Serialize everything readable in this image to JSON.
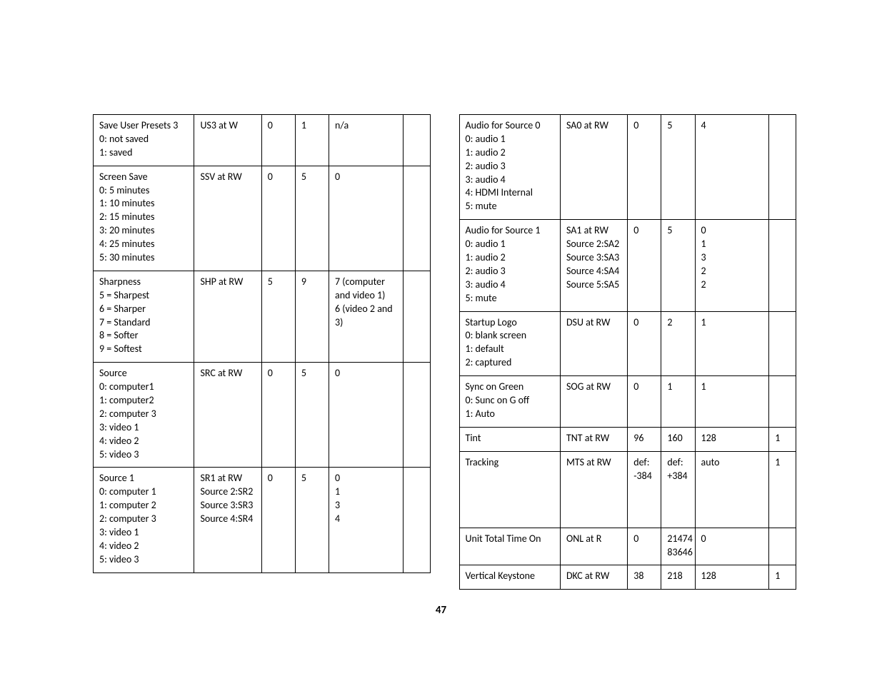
{
  "page_number": "47",
  "left_table": {
    "rows": [
      {
        "c1": "Save User Presets 3\n0: not saved\n1: saved",
        "c2": "US3 at W",
        "c3": "0",
        "c4": "1",
        "c5": "n/a",
        "c6": ""
      },
      {
        "c1": "Screen Save\n0: 5 minutes\n1: 10 minutes\n2: 15 minutes\n3: 20 minutes\n4: 25 minutes\n5: 30 minutes",
        "c2": "SSV at RW",
        "c3": "0",
        "c4": "5",
        "c5": "0",
        "c6": ""
      },
      {
        "c1": "Sharpness\n5 = Sharpest\n6 = Sharper\n7 = Standard\n8 = Softer\n9 = Softest",
        "c2": "SHP at RW",
        "c3": "5",
        "c4": "9",
        "c5": "7 (computer and video 1)\n6 (video 2 and 3)",
        "c6": ""
      },
      {
        "c1": "Source\n0: computer1\n1: computer2\n2: computer 3\n3: video 1\n4: video 2\n5: video 3",
        "c2": "SRC at RW",
        "c3": "0",
        "c4": "5",
        "c5": "0",
        "c6": ""
      },
      {
        "c1": "Source 1\n0: computer 1\n1: computer 2\n2: computer 3\n3: video 1\n4: video 2\n5: video 3",
        "c2": "SR1 at RW\nSource 2:SR2\nSource 3:SR3\nSource 4:SR4",
        "c3": "0",
        "c4": "5",
        "c5": "0\n1\n3\n4",
        "c6": ""
      }
    ]
  },
  "right_table": {
    "rows": [
      {
        "c1": "Audio for Source 0\n0: audio 1\n1: audio 2\n2: audio 3\n3: audio 4\n4: HDMI Internal\n5: mute",
        "c2": "SA0 at RW",
        "c3": "0",
        "c4": "5",
        "c5": "4",
        "c6": ""
      },
      {
        "c1": "Audio for Source 1\n0: audio 1\n1: audio 2\n2: audio 3\n3: audio 4\n5: mute",
        "c2": "SA1 at RW\nSource 2:SA2\nSource 3:SA3\nSource 4:SA4\nSource 5:SA5",
        "c3": "0",
        "c4": "5",
        "c5": "0\n1\n3\n2\n2",
        "c6": ""
      },
      {
        "c1": "Startup Logo\n0: blank screen\n1: default\n2: captured",
        "c2": "DSU at RW",
        "c3": "0",
        "c4": "2",
        "c5": "1",
        "c6": ""
      },
      {
        "c1": "Sync on Green\n0: Sunc on G off\n1: Auto",
        "c2": "SOG at RW",
        "c3": "0",
        "c4": "1",
        "c5": "1",
        "c6": ""
      },
      {
        "c1": "Tint",
        "c2": "TNT at RW",
        "c3": "96",
        "c4": "160",
        "c5": "128",
        "c6": "1"
      },
      {
        "c1": "Tracking",
        "c2": "MTS at RW",
        "c3": "def:\n-384",
        "c4": "def:\n+384",
        "c5": "auto",
        "c6": "1",
        "tall": true
      },
      {
        "c1": "Unit Total Time On",
        "c2": "ONL at R",
        "c3": "0",
        "c4": "21474\n83646",
        "c5": "0",
        "c6": ""
      },
      {
        "c1": "Vertical Keystone",
        "c2": "DKC at RW",
        "c3": "38",
        "c4": "218",
        "c5": "128",
        "c6": "1"
      }
    ]
  }
}
